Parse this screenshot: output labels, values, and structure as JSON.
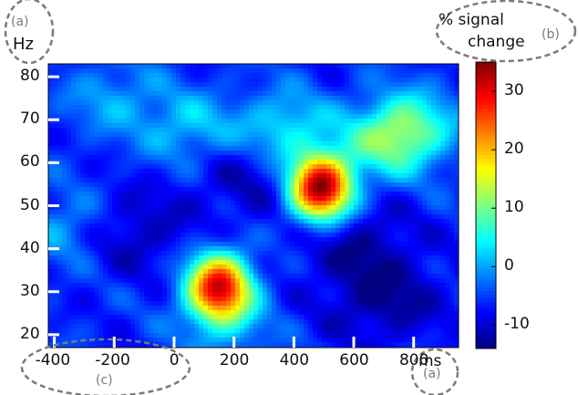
{
  "chart_data": {
    "type": "heatmap",
    "title": "",
    "xlabel": "ms",
    "ylabel": "Hz",
    "xlim": [
      -420,
      950
    ],
    "ylim": [
      17,
      83
    ],
    "x_ticks": [
      -400,
      -200,
      0,
      200,
      400,
      600,
      800
    ],
    "x_tick_labels": [
      "-400",
      "-200",
      "0",
      "200",
      "400",
      "600",
      "800"
    ],
    "y_ticks": [
      20,
      30,
      40,
      50,
      60,
      70,
      80
    ],
    "y_tick_labels": [
      "20",
      "30",
      "40",
      "50",
      "60",
      "70",
      "80"
    ],
    "colorbar": {
      "label_line1": "% signal",
      "label_line2": "change",
      "range": [
        -14,
        35
      ],
      "ticks": [
        -10,
        0,
        10,
        20,
        30
      ],
      "tick_labels": [
        "-10",
        "0",
        "10",
        "20",
        "30"
      ],
      "colormap": "jet"
    },
    "baseline": -6,
    "peaks": [
      {
        "time_ms": 150,
        "freq_hz": 31,
        "value": 30
      },
      {
        "time_ms": 490,
        "freq_hz": 54,
        "value": 35
      },
      {
        "time_ms": 50,
        "freq_hz": 68,
        "value": 2
      },
      {
        "time_ms": -200,
        "freq_hz": 75,
        "value": 0
      },
      {
        "time_ms": 370,
        "freq_hz": 68,
        "value": 4
      },
      {
        "time_ms": 700,
        "freq_hz": 64,
        "value": 2
      },
      {
        "time_ms": 780,
        "freq_hz": 68,
        "value": 8
      },
      {
        "time_ms": -350,
        "freq_hz": 45,
        "value": 1
      },
      {
        "time_ms": 180,
        "freq_hz": 22,
        "value": -1
      }
    ],
    "troughs": [
      {
        "time_ms": 700,
        "freq_hz": 28,
        "value": -13
      },
      {
        "time_ms": -150,
        "freq_hz": 44,
        "value": -12
      },
      {
        "time_ms": 250,
        "freq_hz": 56,
        "value": -11
      },
      {
        "time_ms": 600,
        "freq_hz": 42,
        "value": -12
      }
    ]
  },
  "annotations": {
    "a_top": "(a)",
    "b": "(b)",
    "c": "(c)",
    "a_bottom": "(a)"
  },
  "colors": {
    "annotation_ellipse": "#7a7a7a",
    "contour": "#000000"
  }
}
